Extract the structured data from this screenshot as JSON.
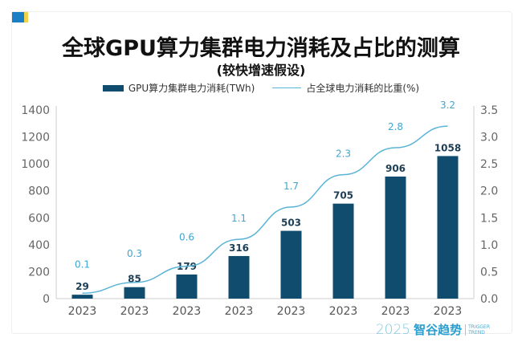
{
  "chart_data": {
    "type": "bar",
    "title": "全球GPU算力集群电力消耗及占比的测算",
    "subtitle": "(较快增速假设)",
    "categories": [
      "2023",
      "2023",
      "2023",
      "2023",
      "2023",
      "2023",
      "2023",
      "2023"
    ],
    "series": [
      {
        "name": "GPU算力集群电力消耗(TWh)",
        "type": "bar",
        "axis": "left",
        "values": [
          29,
          85,
          179,
          316,
          503,
          705,
          906,
          1058
        ],
        "color": "#0f4c6e"
      },
      {
        "name": "占全球电力消耗的比重(%)",
        "type": "line",
        "axis": "right",
        "values": [
          0.1,
          0.3,
          0.6,
          1.1,
          1.7,
          2.3,
          2.8,
          3.2
        ],
        "color": "#5ab4d6"
      }
    ],
    "ylim_left": [
      0,
      1400
    ],
    "yticks_left": [
      0,
      200,
      400,
      600,
      800,
      1000,
      1200,
      1400
    ],
    "ylim_right": [
      0,
      3.5
    ],
    "yticks_right": [
      "0.0",
      "0.5",
      "1.0",
      "1.5",
      "2.0",
      "2.5",
      "3.0",
      "3.5"
    ],
    "grid": false,
    "legend": "top"
  },
  "logo": {
    "year": "2025",
    "name": "智谷趋势",
    "en1": "TRIGGER",
    "en2": "TREND"
  }
}
